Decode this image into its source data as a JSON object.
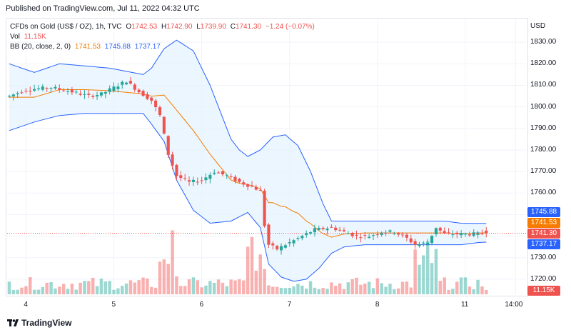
{
  "published": "Published on TradingView.com, Jul 11, 2022 04:32 UTC",
  "legend": {
    "symbol": "CFDs on Gold (US$ / OZ), 1h, TVC",
    "open_label": "O",
    "open": "1742.53",
    "high_label": "H",
    "high": "1742.90",
    "low_label": "L",
    "low": "1739.90",
    "close_label": "C",
    "close": "1741.30",
    "change": "−1.24 (−0.07%)",
    "vol_label": "Vol",
    "vol": "11.15K",
    "bb_label": "BB (20, close, 2, 0)",
    "bb_basis": "1741.53",
    "bb_upper": "1745.88",
    "bb_lower": "1737.17"
  },
  "footer": {
    "brand": "TradingView"
  },
  "colors": {
    "up": "#26a69a",
    "down": "#ef5350",
    "basis": "#f57c00",
    "band": "#2962ff",
    "band_fill": "#e3f2fd"
  },
  "chart_data": {
    "type": "candlestick",
    "currency": "USD",
    "y_ticks": [
      "1830.00",
      "1820.00",
      "1810.00",
      "1800.00",
      "1790.00",
      "1780.00",
      "1770.00",
      "1760.00",
      "1750.00",
      "1740.00",
      "1730.00",
      "1720.00"
    ],
    "y_tick_values": [
      1830,
      1820,
      1810,
      1800,
      1790,
      1780,
      1770,
      1760,
      1750,
      1740,
      1730,
      1720
    ],
    "ylim": [
      1713,
      1841
    ],
    "x_ticks": [
      {
        "label": "4",
        "bar": 4
      },
      {
        "label": "5",
        "bar": 25
      },
      {
        "label": "6",
        "bar": 46
      },
      {
        "label": "7",
        "bar": 67
      },
      {
        "label": "8",
        "bar": 88
      },
      {
        "label": "11",
        "bar": 109
      },
      {
        "label": "14:00",
        "bar": 121
      }
    ],
    "bar_count": 124,
    "badges": {
      "upper": {
        "value": "1745.88",
        "y": 1745.88
      },
      "basis": {
        "value": "1741.53",
        "y": 1741.53
      },
      "close": {
        "value": "1741.30",
        "y": 1741.3
      },
      "lower": {
        "value": "1737.17",
        "y": 1737.17
      },
      "volume": {
        "value": "11.15K"
      }
    },
    "anchors": [
      [
        0,
        1805
      ],
      [
        4,
        1808
      ],
      [
        10,
        1809
      ],
      [
        15,
        1807
      ],
      [
        19,
        1805
      ],
      [
        22,
        1806
      ],
      [
        26,
        1810
      ],
      [
        28,
        1812
      ],
      [
        31,
        1807
      ],
      [
        34,
        1803
      ],
      [
        36,
        1796
      ],
      [
        38,
        1778
      ],
      [
        40,
        1768
      ],
      [
        43,
        1765
      ],
      [
        46,
        1766
      ],
      [
        49,
        1770
      ],
      [
        52,
        1768
      ],
      [
        55,
        1765
      ],
      [
        58,
        1763
      ],
      [
        60,
        1761
      ],
      [
        61,
        1745
      ],
      [
        62,
        1736
      ],
      [
        64,
        1734
      ],
      [
        67,
        1737
      ],
      [
        70,
        1740
      ],
      [
        73,
        1743
      ],
      [
        77,
        1744
      ],
      [
        80,
        1742
      ],
      [
        83,
        1740
      ],
      [
        86,
        1740
      ],
      [
        89,
        1742
      ],
      [
        92,
        1742
      ],
      [
        95,
        1739
      ],
      [
        97,
        1736
      ],
      [
        100,
        1737
      ],
      [
        102,
        1744
      ],
      [
        104,
        1741
      ],
      [
        108,
        1741
      ],
      [
        112,
        1741
      ],
      [
        114,
        1741.3
      ]
    ],
    "upper_anchors": [
      [
        0,
        1820
      ],
      [
        6,
        1816
      ],
      [
        12,
        1820
      ],
      [
        18,
        1819
      ],
      [
        24,
        1818
      ],
      [
        32,
        1815
      ],
      [
        34,
        1818
      ],
      [
        37,
        1827
      ],
      [
        40,
        1831
      ],
      [
        44,
        1826
      ],
      [
        48,
        1810
      ],
      [
        53,
        1785
      ],
      [
        55,
        1780
      ],
      [
        57,
        1777
      ],
      [
        60,
        1780
      ],
      [
        63,
        1786
      ],
      [
        66,
        1787
      ],
      [
        69,
        1782
      ],
      [
        72,
        1770
      ],
      [
        75,
        1755
      ],
      [
        77,
        1747
      ],
      [
        80,
        1747
      ],
      [
        85,
        1747
      ],
      [
        90,
        1747
      ],
      [
        95,
        1747
      ],
      [
        100,
        1747
      ],
      [
        104,
        1747
      ],
      [
        108,
        1746
      ],
      [
        112,
        1745.9
      ],
      [
        114,
        1745.9
      ]
    ],
    "lower_anchors": [
      [
        0,
        1789
      ],
      [
        6,
        1793
      ],
      [
        12,
        1796
      ],
      [
        18,
        1797
      ],
      [
        24,
        1797
      ],
      [
        32,
        1797
      ],
      [
        34,
        1792
      ],
      [
        37,
        1784
      ],
      [
        40,
        1766
      ],
      [
        44,
        1752
      ],
      [
        48,
        1746
      ],
      [
        53,
        1747
      ],
      [
        57,
        1751
      ],
      [
        60,
        1744
      ],
      [
        62,
        1727
      ],
      [
        65,
        1721
      ],
      [
        68,
        1719
      ],
      [
        71,
        1720
      ],
      [
        74,
        1725
      ],
      [
        77,
        1732
      ],
      [
        80,
        1735
      ],
      [
        85,
        1736
      ],
      [
        90,
        1736
      ],
      [
        95,
        1736
      ],
      [
        100,
        1736
      ],
      [
        104,
        1736
      ],
      [
        108,
        1736
      ],
      [
        112,
        1737
      ],
      [
        114,
        1737.2
      ]
    ],
    "volume_notes": "volume bars shown in lower pane, spikes around bars 38, 58-60 and 100"
  }
}
